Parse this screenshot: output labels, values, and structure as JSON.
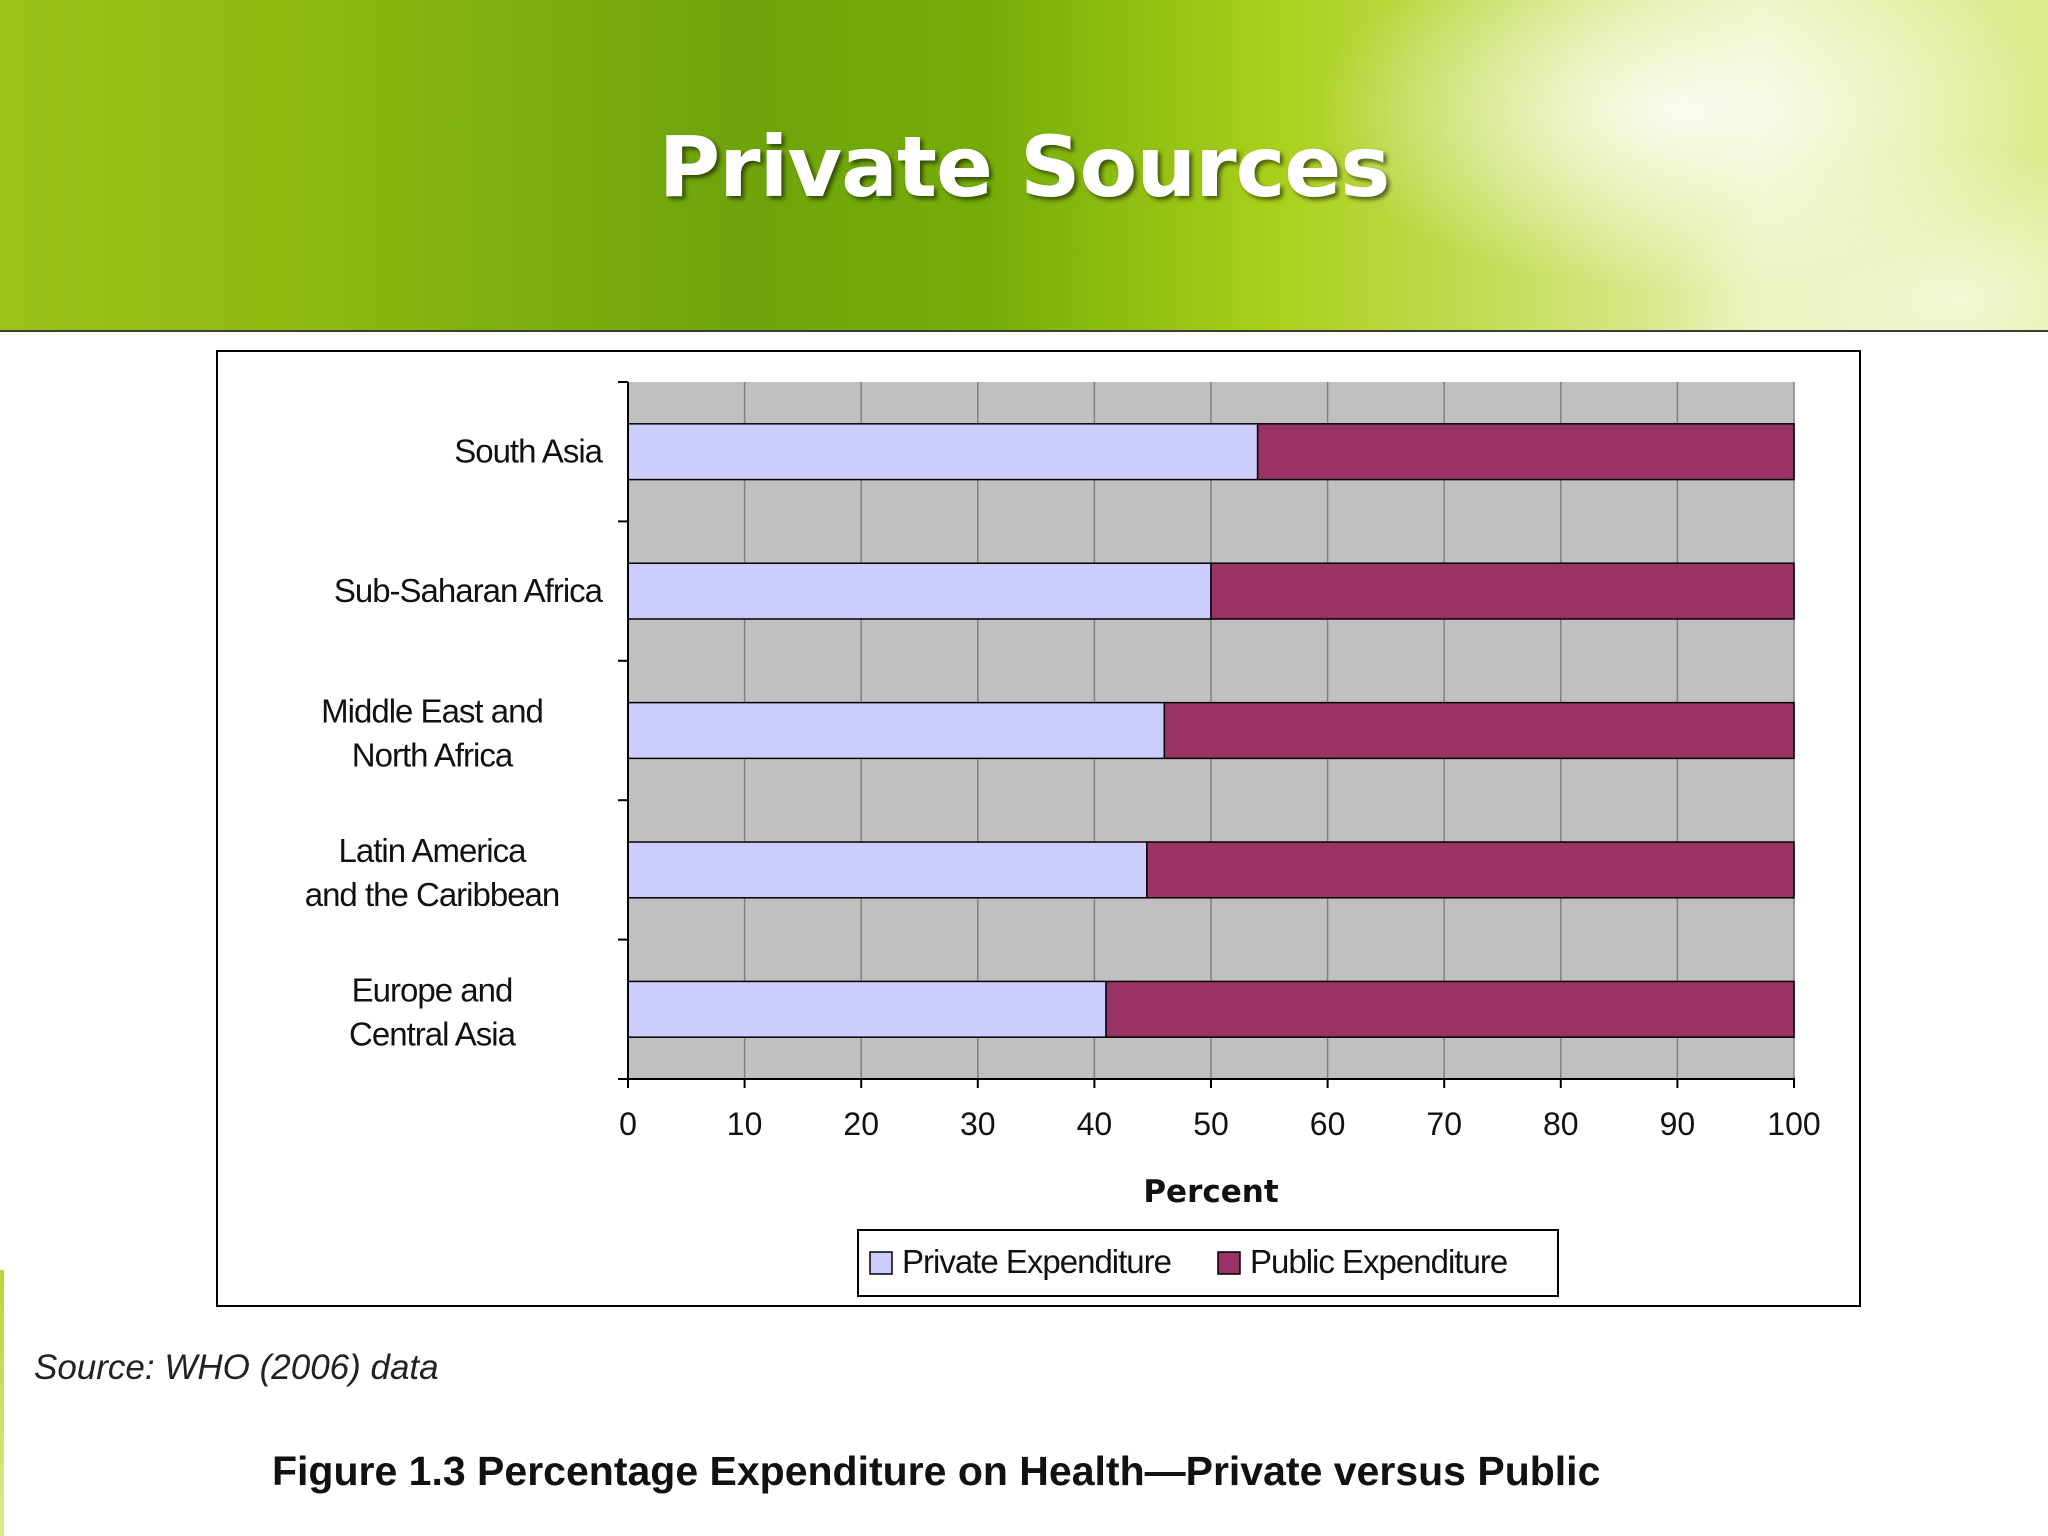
{
  "slide": {
    "title": "Private Sources",
    "source": "Source: WHO (2006) data",
    "caption": "Figure 1.3 Percentage Expenditure on Health—Private versus Public"
  },
  "chart_data": {
    "type": "bar",
    "orientation": "horizontal",
    "stacked": true,
    "categories": [
      "South Asia",
      "Sub-Saharan Africa",
      "Middle East and North Africa",
      "Latin America and the Caribbean",
      "Europe and Central Asia"
    ],
    "series": [
      {
        "name": "Private Expenditure",
        "color": "#ccccff",
        "values": [
          54,
          50,
          46,
          44.5,
          41
        ]
      },
      {
        "name": "Public Expenditure",
        "color": "#993366",
        "values": [
          46,
          50,
          54,
          55.5,
          59
        ]
      }
    ],
    "xlabel": "Percent",
    "xlim": [
      0,
      100
    ],
    "xticks": [
      0,
      10,
      20,
      30,
      40,
      50,
      60,
      70,
      80,
      90,
      100
    ],
    "plot_background": "#c0c0c0",
    "grid": true,
    "legend_position": "bottom"
  }
}
